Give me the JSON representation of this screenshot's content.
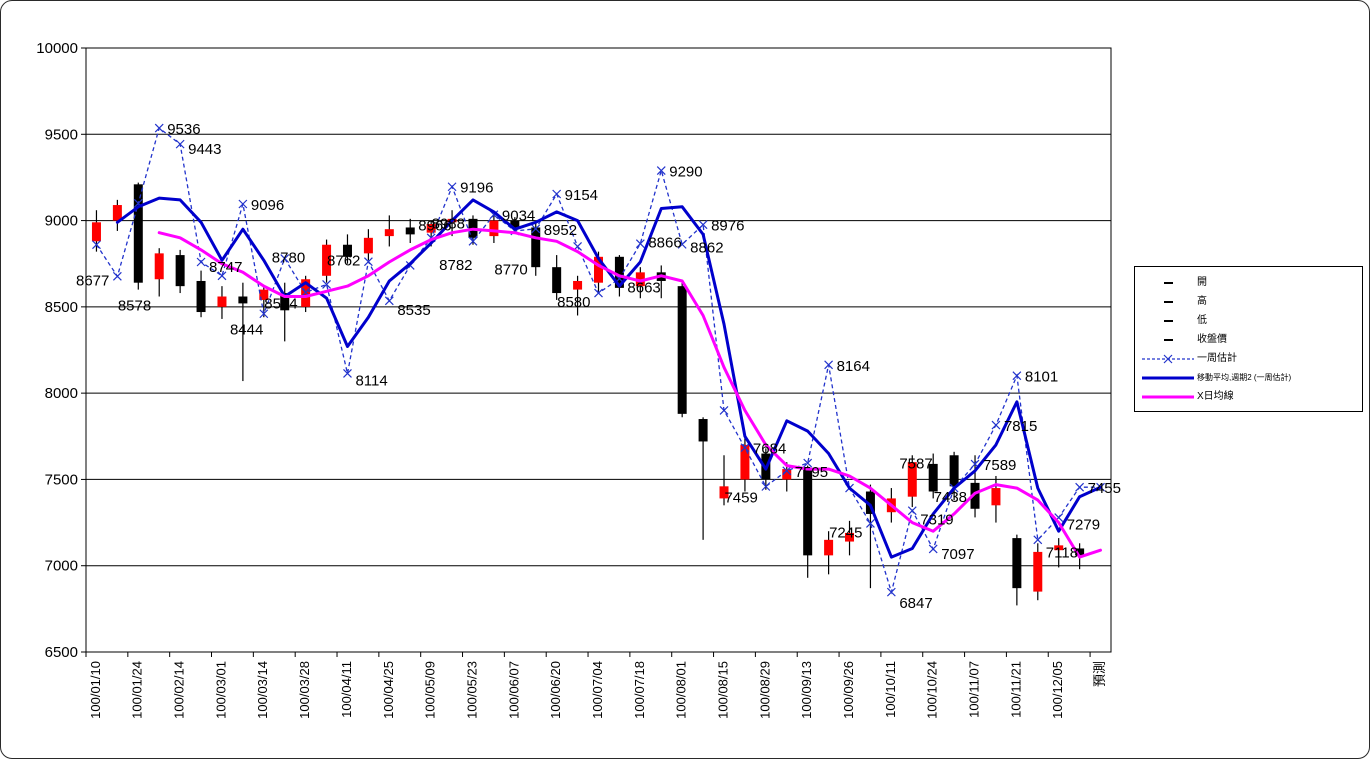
{
  "chart_data": {
    "type": "candlestick",
    "title": "",
    "ylabel": "",
    "xlabel": "",
    "ylim": [
      6500,
      10000
    ],
    "y_ticks": [
      6500,
      7000,
      7500,
      8000,
      8500,
      9000,
      9500,
      10000
    ],
    "grid": true,
    "slots": 49,
    "x_label_every": 2,
    "x_labels": [
      "100/01/10",
      "100/01/24",
      "100/02/14",
      "100/03/01",
      "100/03/14",
      "100/03/28",
      "100/04/11",
      "100/04/25",
      "100/05/09",
      "100/05/23",
      "100/06/07",
      "100/06/20",
      "100/07/04",
      "100/07/18",
      "100/08/01",
      "100/08/15",
      "100/08/29",
      "100/09/13",
      "100/09/26",
      "100/10/11",
      "100/10/24",
      "100/11/07",
      "100/11/21",
      "100/12/05",
      "預測"
    ],
    "colors": {
      "up": "#ff0000",
      "down": "#000000",
      "wick": "#000000",
      "grid": "#000000",
      "estimate": "#2233cc",
      "ma_blue": "#0000cc",
      "ma_magenta": "#ff00ff"
    },
    "candles": [
      [
        8880,
        9060,
        8820,
        8990
      ],
      [
        9000,
        9120,
        8940,
        9090
      ],
      [
        9210,
        9220,
        8600,
        8640
      ],
      [
        8660,
        8840,
        8560,
        8810
      ],
      [
        8800,
        8830,
        8580,
        8620
      ],
      [
        8650,
        8710,
        8440,
        8470
      ],
      [
        8500,
        8620,
        8430,
        8560
      ],
      [
        8560,
        8640,
        8070,
        8520
      ],
      [
        8540,
        8620,
        8440,
        8600
      ],
      [
        8580,
        8640,
        8300,
        8480
      ],
      [
        8500,
        8680,
        8470,
        8660
      ],
      [
        8680,
        8890,
        8640,
        8860
      ],
      [
        8860,
        8920,
        8750,
        8790
      ],
      [
        8810,
        8950,
        8770,
        8900
      ],
      [
        8910,
        9030,
        8850,
        8950
      ],
      [
        8960,
        9010,
        8870,
        8920
      ],
      [
        8930,
        9000,
        8850,
        8980
      ],
      [
        8990,
        9060,
        8910,
        9010
      ],
      [
        9010,
        9030,
        8860,
        8900
      ],
      [
        8910,
        9035,
        8870,
        9000
      ],
      [
        9000,
        9020,
        8930,
        8960
      ],
      [
        8960,
        9000,
        8680,
        8730
      ],
      [
        8730,
        8800,
        8540,
        8580
      ],
      [
        8600,
        8680,
        8450,
        8650
      ],
      [
        8640,
        8820,
        8580,
        8790
      ],
      [
        8790,
        8800,
        8560,
        8610
      ],
      [
        8620,
        8730,
        8550,
        8700
      ],
      [
        8700,
        8740,
        8550,
        8650
      ],
      [
        8620,
        8640,
        7860,
        7880
      ],
      [
        7850,
        7860,
        7150,
        7720
      ],
      [
        7390,
        7640,
        7350,
        7460
      ],
      [
        7500,
        7740,
        7430,
        7700
      ],
      [
        7650,
        7680,
        7440,
        7500
      ],
      [
        7500,
        7600,
        7430,
        7560
      ],
      [
        7560,
        7580,
        6930,
        7060
      ],
      [
        7060,
        7200,
        6950,
        7150
      ],
      [
        7140,
        7260,
        7060,
        7190
      ],
      [
        7430,
        7470,
        6870,
        7300
      ],
      [
        7310,
        7450,
        7250,
        7390
      ],
      [
        7400,
        7640,
        7340,
        7600
      ],
      [
        7590,
        7650,
        7390,
        7430
      ],
      [
        7640,
        7660,
        7380,
        7460
      ],
      [
        7480,
        7640,
        7280,
        7330
      ],
      [
        7350,
        7520,
        7250,
        7450
      ],
      [
        7160,
        7180,
        6770,
        6870
      ],
      [
        6850,
        7130,
        6800,
        7080
      ],
      [
        7090,
        7160,
        6990,
        7118
      ],
      [
        7100,
        7130,
        6980,
        7060
      ]
    ],
    "series": [
      {
        "name": "一周估計",
        "type": "dashed_x",
        "color": "#2233cc",
        "width": 1.3,
        "values": [
          8860,
          8677,
          9100,
          9536,
          9443,
          8760,
          8680,
          9096,
          8460,
          8780,
          8584,
          8630,
          8114,
          8762,
          8535,
          8740,
          8900,
          9196,
          8880,
          9034,
          8940,
          8952,
          9154,
          8850,
          8580,
          8663,
          8866,
          9290,
          8862,
          8976,
          7900,
          7684,
          7459,
          7550,
          7595,
          8164,
          7450,
          7245,
          6847,
          7319,
          7097,
          7450,
          7589,
          7815,
          8101,
          7150,
          7279,
          7455,
          7455
        ]
      },
      {
        "name": "移動平均,週期2 (一周估計)",
        "type": "line",
        "color": "#0000cc",
        "width": 3,
        "values": [
          null,
          8990,
          9080,
          9130,
          9120,
          8990,
          8770,
          8950,
          8770,
          8560,
          8640,
          8550,
          8270,
          8440,
          8650,
          8750,
          8870,
          9000,
          9120,
          9050,
          8950,
          8990,
          9050,
          9000,
          8780,
          8620,
          8760,
          9070,
          9080,
          8920,
          8400,
          7750,
          7560,
          7840,
          7780,
          7650,
          7450,
          7350,
          7050,
          7100,
          7300,
          7450,
          7550,
          7700,
          7950,
          7450,
          7200,
          7400,
          7455
        ]
      },
      {
        "name": "X日均線",
        "type": "line",
        "color": "#ff00ff",
        "width": 3,
        "values": [
          null,
          null,
          null,
          8930,
          8900,
          8830,
          8750,
          8700,
          8620,
          8560,
          8560,
          8590,
          8620,
          8680,
          8760,
          8830,
          8890,
          8930,
          8950,
          8940,
          8930,
          8900,
          8880,
          8820,
          8740,
          8680,
          8650,
          8680,
          8650,
          8450,
          8150,
          7900,
          7700,
          7580,
          7560,
          7560,
          7520,
          7450,
          7350,
          7250,
          7200,
          7300,
          7420,
          7470,
          7450,
          7380,
          7250,
          7050,
          7090
        ]
      }
    ],
    "annotations": [
      {
        "i": 1,
        "v": 8677,
        "t": "8677",
        "a": "e",
        "dy": 5
      },
      {
        "i": 3,
        "v": 9536,
        "t": "9536",
        "a": "s",
        "dy": 2
      },
      {
        "i": 4,
        "v": 9443,
        "t": "9443",
        "a": "s",
        "dy": 6
      },
      {
        "i": 3,
        "v": 8578,
        "t": "8578",
        "a": "e",
        "dy": 13
      },
      {
        "i": 5,
        "v": 8747,
        "t": "8747",
        "a": "s",
        "dy": 4
      },
      {
        "i": 6,
        "v": 8444,
        "t": "8444",
        "a": "s",
        "dy": 14
      },
      {
        "i": 7,
        "v": 9096,
        "t": "9096",
        "a": "s",
        "dy": 2
      },
      {
        "i": 8,
        "v": 8780,
        "t": "8780",
        "a": "s",
        "dy": 0
      },
      {
        "i": 10,
        "v": 8584,
        "t": "8584",
        "a": "e",
        "dy": 12
      },
      {
        "i": 12,
        "v": 8114,
        "t": "8114",
        "a": "s",
        "dy": 8
      },
      {
        "i": 13,
        "v": 8762,
        "t": "8762",
        "a": "e",
        "dy": 0
      },
      {
        "i": 14,
        "v": 8535,
        "t": "8535",
        "a": "s",
        "dy": 10
      },
      {
        "i": 15,
        "v": 8966,
        "t": "8966",
        "a": "s",
        "dy": 0
      },
      {
        "i": 16,
        "v": 8782,
        "t": "8782",
        "a": "s",
        "dy": 8
      },
      {
        "i": 17,
        "v": 9196,
        "t": "9196",
        "a": "s",
        "dy": 2
      },
      {
        "i": 18,
        "v": 8988,
        "t": "8988",
        "a": "e",
        "dy": 2
      },
      {
        "i": 19,
        "v": 9034,
        "t": "9034",
        "a": "s",
        "dy": 2
      },
      {
        "i": 21,
        "v": 8770,
        "t": "8770",
        "a": "e",
        "dy": 10
      },
      {
        "i": 21,
        "v": 8952,
        "t": "8952",
        "a": "s",
        "dy": 2
      },
      {
        "i": 22,
        "v": 9154,
        "t": "9154",
        "a": "s",
        "dy": 2
      },
      {
        "i": 24,
        "v": 8580,
        "t": "8580",
        "a": "e",
        "dy": 10
      },
      {
        "i": 25,
        "v": 8663,
        "t": "8663",
        "a": "s",
        "dy": 10
      },
      {
        "i": 26,
        "v": 8866,
        "t": "8866",
        "a": "s",
        "dy": 0
      },
      {
        "i": 27,
        "v": 9290,
        "t": "9290",
        "a": "s",
        "dy": 2
      },
      {
        "i": 28,
        "v": 8862,
        "t": "8862",
        "a": "s",
        "dy": 4
      },
      {
        "i": 29,
        "v": 8976,
        "t": "8976",
        "a": "s",
        "dy": 2
      },
      {
        "i": 31,
        "v": 7684,
        "t": "7684",
        "a": "s",
        "dy": 2
      },
      {
        "i": 32,
        "v": 7459,
        "t": "7459",
        "a": "e",
        "dy": 12
      },
      {
        "i": 33,
        "v": 7595,
        "t": "7595",
        "a": "s",
        "dy": 10
      },
      {
        "i": 35,
        "v": 8164,
        "t": "8164",
        "a": "s",
        "dy": 2
      },
      {
        "i": 37,
        "v": 7245,
        "t": "7245",
        "a": "e",
        "dy": 10
      },
      {
        "i": 38,
        "v": 7587,
        "t": "7587",
        "a": "s",
        "dy": 0
      },
      {
        "i": 38,
        "v": 6847,
        "t": "6847",
        "a": "s",
        "dy": 12
      },
      {
        "i": 39,
        "v": 7319,
        "t": "7319",
        "a": "s",
        "dy": 10
      },
      {
        "i": 40,
        "v": 7097,
        "t": "7097",
        "a": "s",
        "dy": 6
      },
      {
        "i": 42,
        "v": 7438,
        "t": "7438",
        "a": "e",
        "dy": 8
      },
      {
        "i": 42,
        "v": 7589,
        "t": "7589",
        "a": "s",
        "dy": 2
      },
      {
        "i": 43,
        "v": 7815,
        "t": "7815",
        "a": "s",
        "dy": 2
      },
      {
        "i": 44,
        "v": 8101,
        "t": "8101",
        "a": "s",
        "dy": 2
      },
      {
        "i": 45,
        "v": 7118,
        "t": "7118",
        "a": "s",
        "dy": 8
      },
      {
        "i": 46,
        "v": 7279,
        "t": "7279",
        "a": "s",
        "dy": 8
      },
      {
        "i": 47,
        "v": 7455,
        "t": "7455",
        "a": "s",
        "dy": 2
      }
    ]
  },
  "legend": {
    "items": [
      {
        "label": "開",
        "marker": "tick",
        "color": "#000000"
      },
      {
        "label": "高",
        "marker": "tick",
        "color": "#000000"
      },
      {
        "label": "低",
        "marker": "tick",
        "color": "#000000"
      },
      {
        "label": "收盤價",
        "marker": "tick",
        "color": "#000000"
      },
      {
        "label": "一周估計",
        "marker": "dashed_x",
        "color": "#2233cc"
      },
      {
        "label": "移動平均,週期2 (一周估計)",
        "marker": "line",
        "color": "#0000cc"
      },
      {
        "label": "X日均線",
        "marker": "line",
        "color": "#ff00ff"
      }
    ]
  }
}
